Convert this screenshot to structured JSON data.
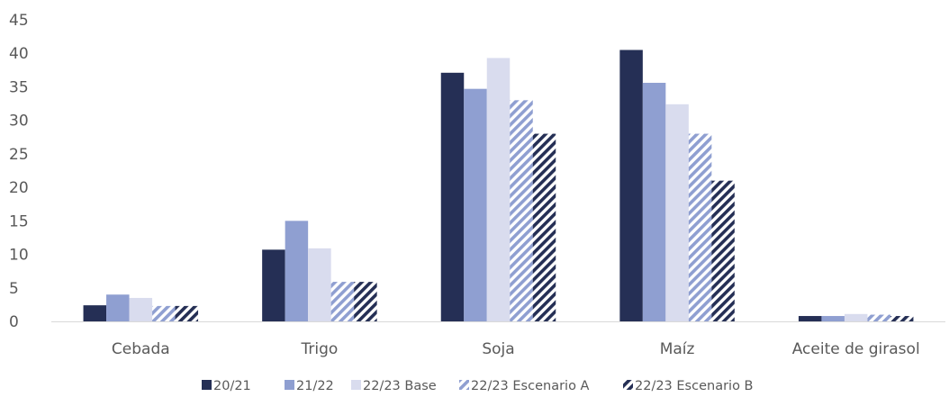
{
  "chart_data": {
    "type": "bar",
    "categories": [
      "Cebada",
      "Trigo",
      "Soja",
      "Maíz",
      "Aceite de girasol"
    ],
    "series": [
      {
        "name": "20/21",
        "values": [
          2.4,
          10.7,
          37.1,
          40.5,
          0.8
        ],
        "color": "#252F55",
        "pattern": "solid"
      },
      {
        "name": "21/22",
        "values": [
          4.0,
          15.0,
          34.7,
          35.6,
          0.8
        ],
        "color": "#8F9FD1",
        "pattern": "solid"
      },
      {
        "name": "22/23 Base",
        "values": [
          3.5,
          10.9,
          39.3,
          32.4,
          1.1
        ],
        "color": "#D9DCEE",
        "pattern": "solid"
      },
      {
        "name": "22/23 Escenario A",
        "values": [
          2.3,
          5.9,
          33.0,
          28.0,
          1.0
        ],
        "color": "#8F9FD1",
        "pattern": "stripes"
      },
      {
        "name": "22/23 Escenario B",
        "values": [
          2.3,
          5.9,
          28.0,
          21.0,
          0.8
        ],
        "color": "#252F55",
        "pattern": "stripes"
      }
    ],
    "yticks": [
      0,
      5,
      10,
      15,
      20,
      25,
      30,
      35,
      40,
      45
    ],
    "ylim": [
      0,
      45
    ],
    "grid": false,
    "legend": "bottom",
    "title": "",
    "xlabel": "",
    "ylabel": ""
  }
}
